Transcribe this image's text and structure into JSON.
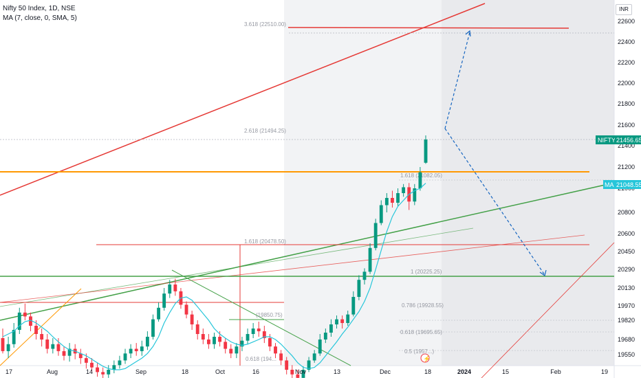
{
  "header": {
    "symbol_line": "Nifty 50 Index, 1D, NSE",
    "indicator_line": "MA (7, close, 0, SMA, 5)",
    "currency": "INR"
  },
  "colors": {
    "up": "#089981",
    "down": "#f23645",
    "ma": "#26c6da",
    "red_line": "#e53935",
    "orange_line": "#ff9800",
    "green_line": "#43a047",
    "blue_arrow": "#1565c0"
  },
  "chart_data": {
    "type": "candlestick",
    "y_axis_ticks": [
      22600,
      22400,
      22200,
      22000,
      21800,
      21600,
      21400,
      21200,
      21000,
      20800,
      20600,
      20450,
      20290,
      20130,
      19970,
      19820,
      19680,
      19550
    ],
    "x_axis_ticks": [
      "17",
      "Aug",
      "14",
      "Sep",
      "18",
      "Oct",
      "16",
      "Nov",
      "13",
      "Dec",
      "18",
      "2024",
      "15",
      "Feb",
      "19"
    ],
    "last_price": {
      "label": "NIFTY",
      "value": "21456.65"
    },
    "ma_value": {
      "label": "MA",
      "value": "21048.55"
    },
    "fib_levels": [
      {
        "label": "3.618 (22510.00)"
      },
      {
        "label": "2.618 (21494.25)"
      },
      {
        "label": "1.618 (21082.05)"
      },
      {
        "label": "1.618 (20478.50)"
      },
      {
        "label": "1 (20225.25)"
      },
      {
        "label": "0.786 (19928.55)"
      },
      {
        "label": "(19850.75)"
      },
      {
        "label": "0.618 (19695.65)"
      },
      {
        "label": "0.618 (194..."
      },
      {
        "label": "0.5 (1957...)"
      }
    ],
    "candles": [
      [
        19690,
        19580,
        19760,
        19560
      ],
      [
        19580,
        19640,
        19700,
        19520
      ],
      [
        19640,
        19750,
        19800,
        19610
      ],
      [
        19750,
        19900,
        19950,
        19720
      ],
      [
        19900,
        19860,
        19990,
        19820
      ],
      [
        19860,
        19780,
        19900,
        19740
      ],
      [
        19780,
        19720,
        19820,
        19680
      ],
      [
        19720,
        19680,
        19760,
        19620
      ],
      [
        19680,
        19600,
        19720,
        19560
      ],
      [
        19600,
        19640,
        19690,
        19560
      ],
      [
        19640,
        19580,
        19690,
        19540
      ],
      [
        19580,
        19540,
        19620,
        19500
      ],
      [
        19540,
        19600,
        19650,
        19490
      ],
      [
        19600,
        19560,
        19640,
        19510
      ],
      [
        19560,
        19520,
        19600,
        19470
      ],
      [
        19520,
        19480,
        19560,
        19430
      ],
      [
        19480,
        19440,
        19520,
        19400
      ],
      [
        19440,
        19400,
        19480,
        19360
      ],
      [
        19400,
        19380,
        19440,
        19330
      ],
      [
        19380,
        19420,
        19460,
        19350
      ],
      [
        19420,
        19460,
        19500,
        19390
      ],
      [
        19460,
        19500,
        19540,
        19430
      ],
      [
        19500,
        19560,
        19600,
        19470
      ],
      [
        19560,
        19600,
        19640,
        19520
      ],
      [
        19600,
        19580,
        19650,
        19540
      ],
      [
        19580,
        19620,
        19670,
        19540
      ],
      [
        19620,
        19700,
        19740,
        19590
      ],
      [
        19700,
        19830,
        19880,
        19680
      ],
      [
        19830,
        19950,
        20000,
        19810
      ],
      [
        19950,
        20080,
        20130,
        19920
      ],
      [
        20080,
        20160,
        20200,
        20040
      ],
      [
        20160,
        20100,
        20210,
        20060
      ],
      [
        20100,
        19980,
        20130,
        19940
      ],
      [
        19980,
        19880,
        20010,
        19840
      ],
      [
        19880,
        19790,
        19920,
        19750
      ],
      [
        19790,
        19720,
        19820,
        19680
      ],
      [
        19720,
        19680,
        19760,
        19640
      ],
      [
        19680,
        19640,
        19720,
        19600
      ],
      [
        19640,
        19700,
        19730,
        19600
      ],
      [
        19700,
        19660,
        19740,
        19620
      ],
      [
        19660,
        19600,
        19690,
        19560
      ],
      [
        19600,
        19560,
        19640,
        19520
      ],
      [
        19560,
        19620,
        19650,
        19520
      ],
      [
        19620,
        19670,
        19700,
        19580
      ],
      [
        19670,
        19720,
        19760,
        19640
      ],
      [
        19720,
        19760,
        19800,
        19690
      ],
      [
        19760,
        19740,
        19810,
        19700
      ],
      [
        19740,
        19690,
        19780,
        19650
      ],
      [
        19690,
        19620,
        19720,
        19580
      ],
      [
        19620,
        19560,
        19650,
        19520
      ],
      [
        19560,
        19500,
        19590,
        19460
      ],
      [
        19500,
        19420,
        19530,
        19380
      ],
      [
        19420,
        19380,
        19460,
        19340
      ],
      [
        19380,
        19350,
        19420,
        19310
      ],
      [
        19350,
        19420,
        19450,
        19320
      ],
      [
        19420,
        19500,
        19530,
        19400
      ],
      [
        19500,
        19560,
        19590,
        19480
      ],
      [
        19560,
        19680,
        19720,
        19540
      ],
      [
        19680,
        19730,
        19760,
        19650
      ],
      [
        19730,
        19790,
        19830,
        19700
      ],
      [
        19790,
        19830,
        19870,
        19760
      ],
      [
        19830,
        19800,
        19870,
        19760
      ],
      [
        19800,
        19880,
        19920,
        19780
      ],
      [
        19880,
        20050,
        20100,
        19860
      ],
      [
        20050,
        20200,
        20240,
        20020
      ],
      [
        20200,
        20270,
        20300,
        20160
      ],
      [
        20270,
        20480,
        20520,
        20250
      ],
      [
        20480,
        20700,
        20740,
        20460
      ],
      [
        20700,
        20860,
        20900,
        20680
      ],
      [
        20860,
        20920,
        20960,
        20800
      ],
      [
        20920,
        20880,
        20980,
        20840
      ],
      [
        20880,
        20960,
        21000,
        20850
      ],
      [
        20960,
        21010,
        21040,
        20930
      ],
      [
        21010,
        20890,
        21050,
        20820
      ],
      [
        20890,
        21000,
        21040,
        20860
      ],
      [
        21000,
        21150,
        21200,
        20980
      ],
      [
        21240,
        21460,
        21500,
        21230
      ]
    ],
    "ma": [
      19700,
      19720,
      19740,
      19780,
      19810,
      19820,
      19800,
      19770,
      19740,
      19700,
      19660,
      19620,
      19590,
      19580,
      19560,
      19540,
      19510,
      19480,
      19450,
      19430,
      19420,
      19420,
      19430,
      19460,
      19490,
      19520,
      19560,
      19620,
      19700,
      19800,
      19900,
      19990,
      20040,
      20050,
      20020,
      19960,
      19890,
      19820,
      19760,
      19720,
      19690,
      19660,
      19640,
      19630,
      19640,
      19660,
      19680,
      19700,
      19700,
      19680,
      19640,
      19590,
      19540,
      19480,
      19440,
      19430,
      19440,
      19480,
      19540,
      19600,
      19660,
      19720,
      19770,
      19830,
      19910,
      20010,
      20130,
      20290,
      20460,
      20620,
      20760,
      20850,
      20900,
      20950,
      20980,
      21000,
      21048
    ]
  }
}
